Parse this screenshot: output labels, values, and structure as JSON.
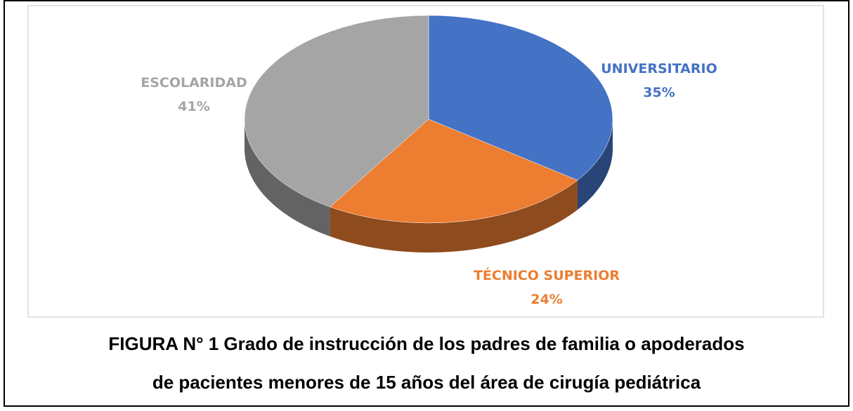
{
  "chart_data": {
    "type": "pie",
    "categories": [
      "UNIVERSITARIO",
      "TÉCNICO SUPERIOR",
      "ESCOLARIDAD"
    ],
    "values": [
      35,
      24,
      41
    ],
    "value_labels": [
      "35%",
      "24%",
      "41%"
    ],
    "colors": [
      "#4472c4",
      "#ed7d31",
      "#a5a5a5"
    ],
    "title_lines": [
      "FIGURA N° 1 Grado de instrucción de los padres de familia o apoderados",
      "de pacientes menores de 15 años del área de cirugía pediátrica"
    ]
  }
}
